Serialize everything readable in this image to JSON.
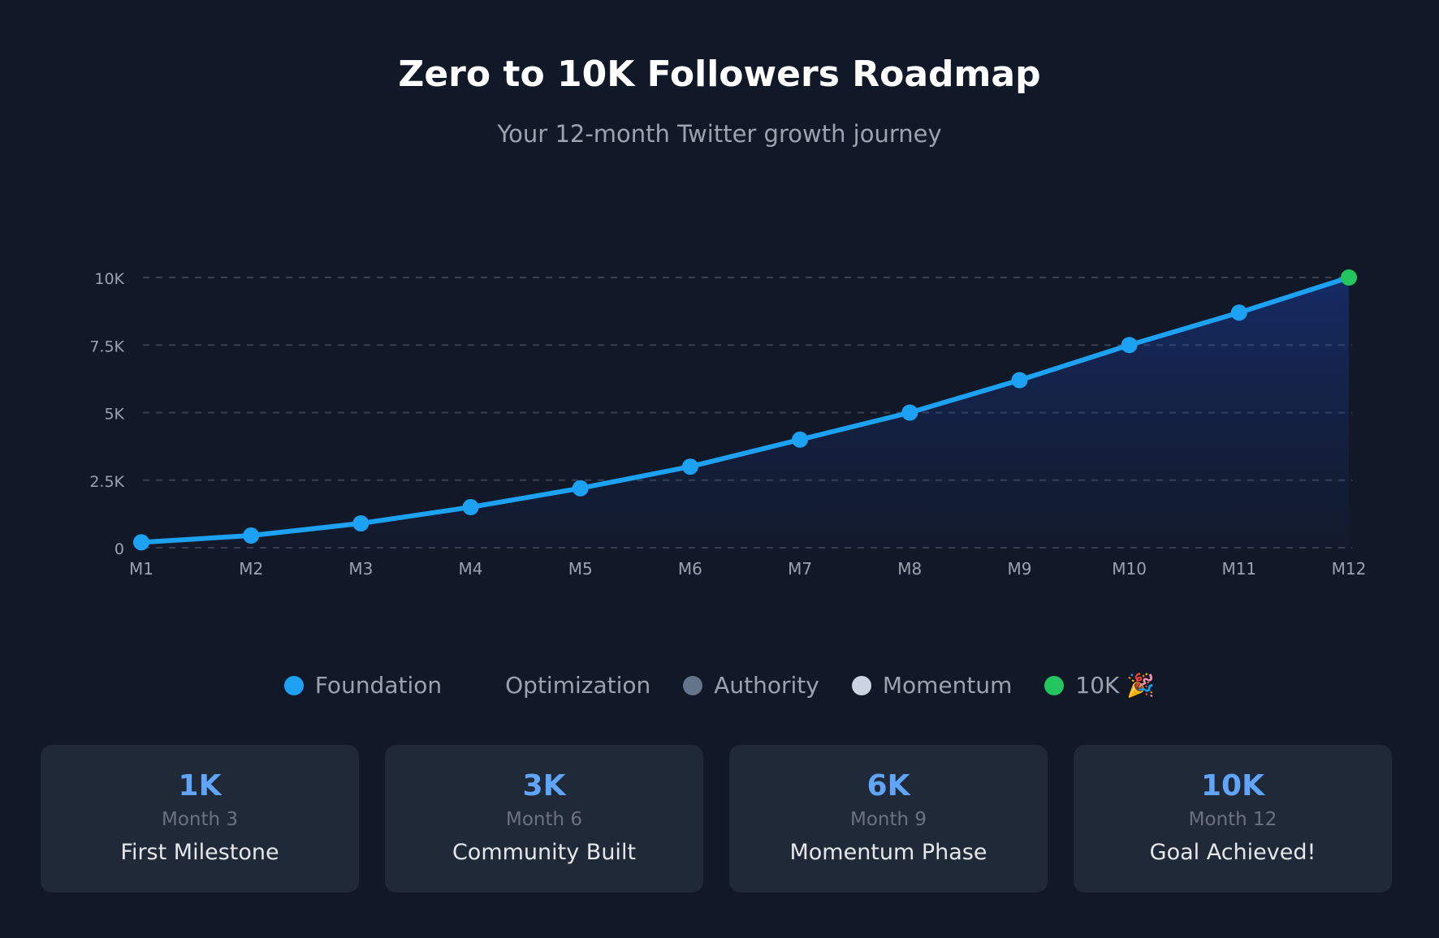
{
  "chart_data": {
    "type": "area",
    "title": "Zero to 10K Followers Roadmap",
    "subtitle": "Your 12-month Twitter growth journey",
    "categories": [
      "M1",
      "M2",
      "M3",
      "M4",
      "M5",
      "M6",
      "M7",
      "M8",
      "M9",
      "M10",
      "M11",
      "M12"
    ],
    "values": [
      200,
      450,
      900,
      1500,
      2200,
      3000,
      4000,
      5000,
      6200,
      7500,
      8700,
      10000
    ],
    "ylim": [
      0,
      10000
    ],
    "yticks": [
      0,
      2500,
      5000,
      7500,
      10000
    ],
    "ytick_labels": [
      "0",
      "2.5K",
      "5K",
      "7.5K",
      "10K"
    ],
    "grid": true,
    "line_color": "#1da1f2",
    "final_point_color": "#22c55e",
    "legend_placement": "bottom",
    "legend": [
      {
        "label": "Foundation",
        "color": "#1da1f2"
      },
      {
        "label": "Optimization",
        "color": "#111827"
      },
      {
        "label": "Authority",
        "color": "#64748b"
      },
      {
        "label": "Momentum",
        "color": "#cbd5e1"
      },
      {
        "label": "10K 🎉",
        "color": "#22c55e"
      }
    ]
  },
  "milestones": [
    {
      "value": "1K",
      "month": "Month 3",
      "label": "First Milestone"
    },
    {
      "value": "3K",
      "month": "Month 6",
      "label": "Community Built"
    },
    {
      "value": "6K",
      "month": "Month 9",
      "label": "Momentum Phase"
    },
    {
      "value": "10K",
      "month": "Month 12",
      "label": "Goal Achieved!"
    }
  ]
}
